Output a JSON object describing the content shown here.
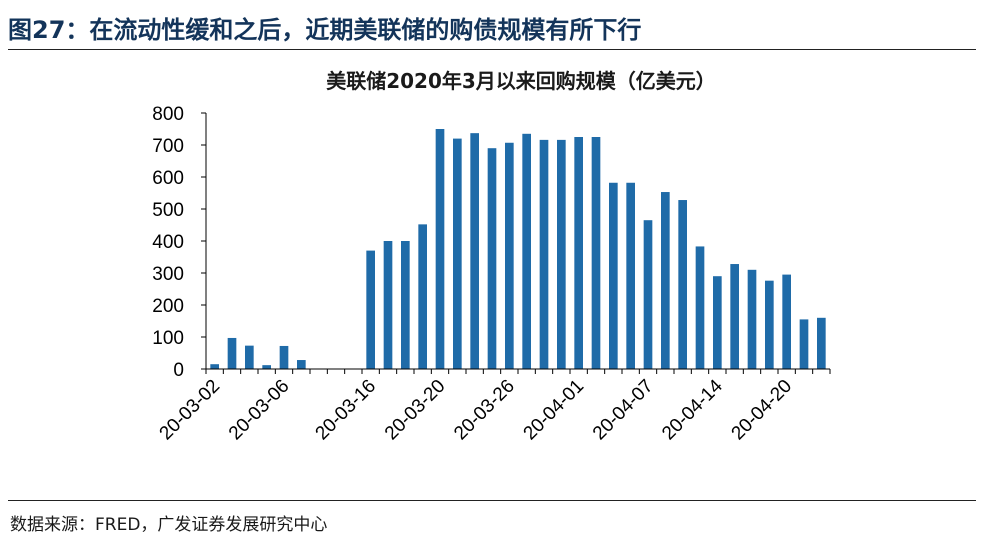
{
  "header": {
    "title": "图27：在流动性缓和之后，近期美联储的购债规模有所下行"
  },
  "footer": {
    "source": "数据来源：FRED，广发证券发展研究中心"
  },
  "chart_data": {
    "type": "bar",
    "title": "美联储2020年3月以来回购规模（亿美元）",
    "xlabel": "",
    "ylabel": "",
    "ylim": [
      0,
      800
    ],
    "yticks": [
      0,
      100,
      200,
      300,
      400,
      500,
      600,
      700,
      800
    ],
    "grid": false,
    "legend": "none",
    "bar_color": "#1f6ba8",
    "x_tick_labels": [
      "20-03-02",
      "20-03-06",
      "20-03-16",
      "20-03-20",
      "20-03-26",
      "20-04-01",
      "20-04-07",
      "20-04-14",
      "20-04-20"
    ],
    "x_tick_label_positions": [
      0,
      4,
      9,
      13,
      17,
      21,
      25,
      29,
      33
    ],
    "values": [
      15,
      97,
      73,
      12,
      72,
      28,
      0,
      0,
      0,
      370,
      400,
      400,
      452,
      750,
      720,
      737,
      690,
      707,
      735,
      716,
      716,
      725,
      725,
      582,
      582,
      465,
      553,
      528,
      383,
      290,
      328,
      310,
      276,
      295,
      155,
      160
    ]
  }
}
